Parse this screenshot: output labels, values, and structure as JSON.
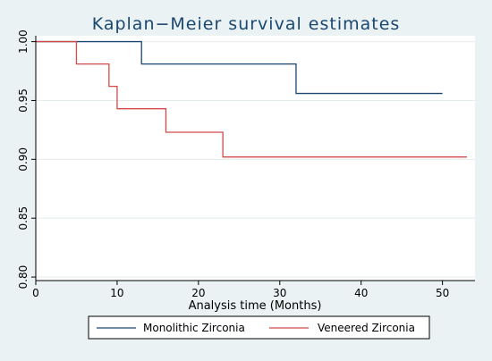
{
  "chart_data": {
    "type": "line",
    "title": "Kaplan−Meier survival estimates",
    "xlabel": "Analysis time (Months)",
    "ylabel": "",
    "xlim": [
      0,
      54
    ],
    "ylim": [
      0.797,
      1.005
    ],
    "xticks": [
      0,
      10,
      20,
      30,
      40,
      50
    ],
    "xtick_labels": [
      "0",
      "10",
      "20",
      "30",
      "40",
      "50"
    ],
    "yticks": [
      0.8,
      0.85,
      0.9,
      0.95,
      1.0
    ],
    "ytick_labels": [
      "0.80",
      "0.85",
      "0.90",
      "0.95",
      "1.00"
    ],
    "grid": true,
    "legend_position": "bottom",
    "series": [
      {
        "name": "Monolithic Zirconia",
        "color": "#1a476f",
        "step_points": [
          [
            0,
            1.0
          ],
          [
            13,
            0.981
          ],
          [
            32,
            0.956
          ],
          [
            50,
            0.956
          ]
        ]
      },
      {
        "name": "Veneered Zirconia",
        "color": "#d24a4a",
        "step_points": [
          [
            0,
            1.0
          ],
          [
            5,
            0.981
          ],
          [
            9,
            0.962
          ],
          [
            10,
            0.943
          ],
          [
            16,
            0.923
          ],
          [
            23,
            0.902
          ],
          [
            53,
            0.902
          ]
        ]
      }
    ]
  },
  "colors": {
    "outer_background": "#eaf2f3",
    "plot_background": "#ffffff",
    "grid": "#e4ecee",
    "axis": "#000000"
  }
}
